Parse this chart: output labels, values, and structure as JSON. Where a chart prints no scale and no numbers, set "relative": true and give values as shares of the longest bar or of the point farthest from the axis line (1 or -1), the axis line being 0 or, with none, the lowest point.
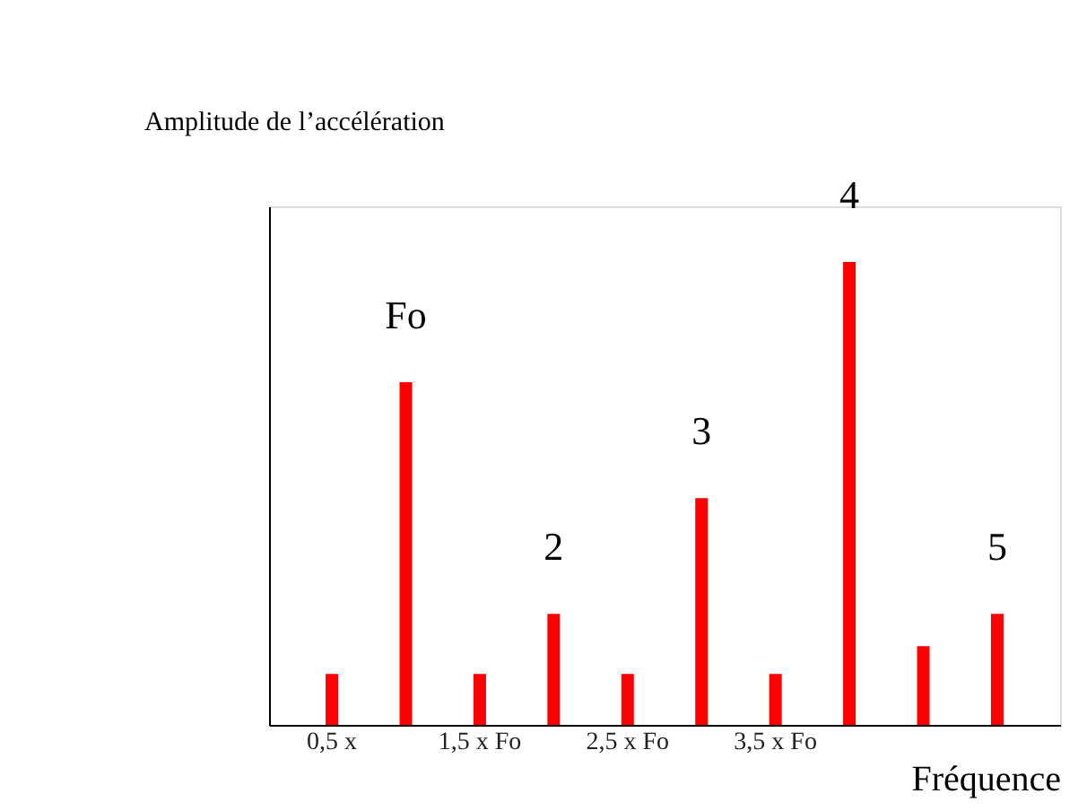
{
  "chart_data": {
    "type": "bar",
    "relative": true,
    "ylabel": "Amplitude de l’accélération",
    "xlabel": "Fréquence",
    "categories": [
      "0,5 x",
      null,
      "1,5 x Fo",
      null,
      "2,5 x Fo",
      null,
      "3,5 x Fo",
      null,
      null,
      null
    ],
    "values": [
      0.11,
      0.74,
      0.11,
      0.24,
      0.11,
      0.49,
      0.11,
      1,
      0.17,
      0.24
    ],
    "annotations": [
      {
        "text": "Fo",
        "y": 0.74
      },
      {
        "text": "2",
        "y": 0.24
      },
      {
        "text": "3",
        "y": 0.49
      },
      {
        "text": "4",
        "y": 1
      },
      {
        "text": "5",
        "y": 0.24
      }
    ],
    "color": "#ff0000",
    "grid": false
  }
}
